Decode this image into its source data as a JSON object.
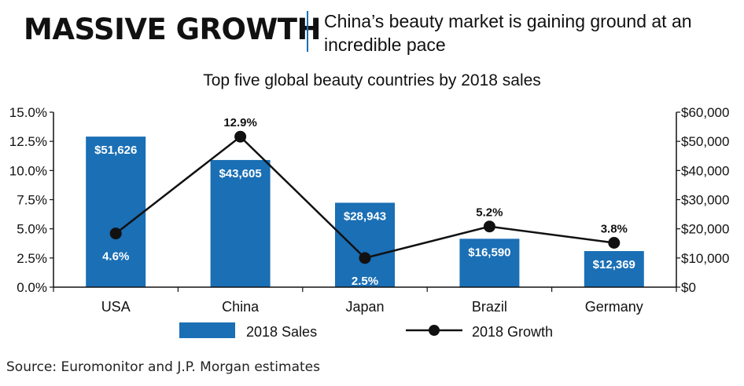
{
  "header": {
    "headline": "MASSIVE GROWTH",
    "subhead": "China’s beauty market is gaining ground at an incredible pace"
  },
  "colors": {
    "bar": "#1a6fb5",
    "line": "#111111",
    "divider": "#1a6fb5"
  },
  "chart_data": {
    "type": "bar",
    "title": "Top five global beauty countries by 2018 sales",
    "categories": [
      "USA",
      "China",
      "Japan",
      "Brazil",
      "Germany"
    ],
    "series": [
      {
        "name": "2018 Sales",
        "type": "bar",
        "axis": "right",
        "values": [
          51626,
          43605,
          28943,
          16590,
          12369
        ],
        "labels": [
          "$51,626",
          "$43,605",
          "$28,943",
          "$16,590",
          "$12,369"
        ]
      },
      {
        "name": "2018 Growth",
        "type": "line",
        "axis": "left",
        "values": [
          4.6,
          12.9,
          2.5,
          5.2,
          3.8
        ],
        "labels": [
          "4.6%",
          "12.9%",
          "2.5%",
          "5.2%",
          "3.8%"
        ]
      }
    ],
    "left_axis": {
      "range": [
        0,
        15
      ],
      "ticks": [
        "0.0%",
        "2.5%",
        "5.0%",
        "7.5%",
        "10.0%",
        "12.5%",
        "15.0%"
      ]
    },
    "right_axis": {
      "range": [
        0,
        60000
      ],
      "ticks": [
        "$0",
        "$10,000",
        "$20,000",
        "$30,000",
        "$40,000",
        "$50,000",
        "$60,000"
      ]
    },
    "legend_position": "bottom",
    "grid": false
  },
  "footer": {
    "source": "Source: Euromonitor and J.P. Morgan estimates"
  }
}
